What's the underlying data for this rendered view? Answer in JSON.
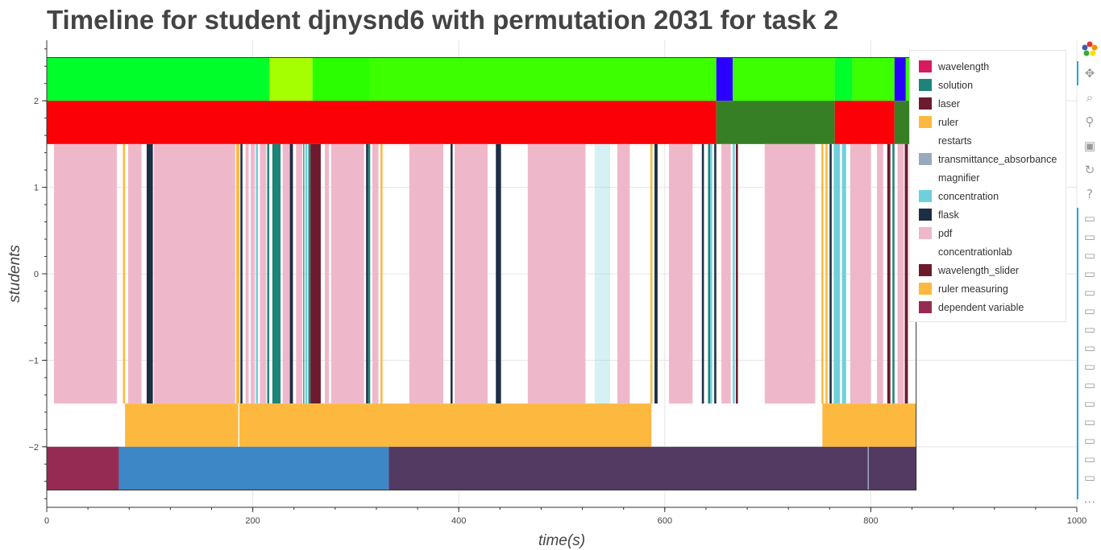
{
  "chart_data": {
    "type": "timeline",
    "title": "Timeline for student djnysnd6 with permutation 2031 for task 2",
    "xlabel": "time(s)",
    "ylabel": "students",
    "xlim": [
      0,
      1000
    ],
    "ylim": [
      -2.7,
      2.7
    ],
    "x_ticks": [
      0,
      200,
      400,
      600,
      800,
      1000
    ],
    "x_tick_labels": [
      "0",
      "200",
      "400",
      "600",
      "800",
      "1000"
    ],
    "y_ticks": [
      2,
      1,
      0,
      -1,
      -2
    ],
    "y_tick_labels": [
      "2",
      "1",
      "0",
      "−1",
      "−2"
    ],
    "grid": true,
    "legend_position": "top-right",
    "legend": [
      {
        "label": "wavelength",
        "color": "#d81b60"
      },
      {
        "label": "solution",
        "color": "#1e8378"
      },
      {
        "label": "laser",
        "color": "#6d1a2e"
      },
      {
        "label": "ruler",
        "color": "#fdb93f"
      },
      {
        "label": "restarts",
        "color": "#ffffff"
      },
      {
        "label": "transmittance_absorbance",
        "color": "#9aaabd"
      },
      {
        "label": "magnifier",
        "color": "#ffffff"
      },
      {
        "label": "concentration",
        "color": "#6fd0dc"
      },
      {
        "label": "flask",
        "color": "#1c2e44"
      },
      {
        "label": "pdf",
        "color": "#efb8ca"
      },
      {
        "label": "concentrationlab",
        "color": "#ffffff"
      },
      {
        "label": "wavelength_slider",
        "color": "#6d1a2e"
      },
      {
        "label": "ruler measuring",
        "color": "#fdb93f"
      },
      {
        "label": "dependent variable",
        "color": "#952b52"
      }
    ],
    "rows": [
      {
        "y0": 2.0,
        "y1": 2.5,
        "segments": [
          {
            "x0": 0,
            "x1": 216,
            "color": "#00ff2a"
          },
          {
            "x0": 216,
            "x1": 258,
            "color": "#a6ff00"
          },
          {
            "x0": 258,
            "x1": 313,
            "color": "#2aff00"
          },
          {
            "x0": 313,
            "x1": 650,
            "color": "#3cff00"
          },
          {
            "x0": 650,
            "x1": 666,
            "color": "#2a00ff"
          },
          {
            "x0": 666,
            "x1": 765,
            "color": "#3cff00"
          },
          {
            "x0": 765,
            "x1": 782,
            "color": "#00ff2a"
          },
          {
            "x0": 782,
            "x1": 823,
            "color": "#3cff00"
          },
          {
            "x0": 823,
            "x1": 834,
            "color": "#2a00ff"
          },
          {
            "x0": 834,
            "x1": 844,
            "color": "#3cff00"
          }
        ]
      },
      {
        "y0": 1.5,
        "y1": 2.0,
        "segments": [
          {
            "x0": 0,
            "x1": 650,
            "color": "#fb0006"
          },
          {
            "x0": 650,
            "x1": 765,
            "color": "#377f25"
          },
          {
            "x0": 765,
            "x1": 823,
            "color": "#fb0006"
          },
          {
            "x0": 823,
            "x1": 838,
            "color": "#377f25"
          }
        ]
      },
      {
        "y0": -1.5,
        "y1": 1.5,
        "segments": [
          {
            "x0": 7,
            "x1": 68,
            "color": "#efb8ca"
          },
          {
            "x0": 74,
            "x1": 76,
            "color": "#fdb93f"
          },
          {
            "x0": 79,
            "x1": 92,
            "color": "#efb8ca"
          },
          {
            "x0": 97,
            "x1": 103,
            "color": "#1c2e44"
          },
          {
            "x0": 104,
            "x1": 183,
            "color": "#efb8ca"
          },
          {
            "x0": 184,
            "x1": 187,
            "color": "#fdb93f"
          },
          {
            "x0": 188,
            "x1": 190,
            "color": "#1c2e44"
          },
          {
            "x0": 193,
            "x1": 196,
            "color": "#efb8ca"
          },
          {
            "x0": 198,
            "x1": 202,
            "color": "#efb8ca"
          },
          {
            "x0": 203,
            "x1": 205,
            "color": "#6fd0dc"
          },
          {
            "x0": 207,
            "x1": 213,
            "color": "#efb8ca"
          },
          {
            "x0": 214,
            "x1": 216,
            "color": "#1e8378"
          },
          {
            "x0": 219,
            "x1": 227,
            "color": "#1e8378"
          },
          {
            "x0": 229,
            "x1": 236,
            "color": "#efb8ca"
          },
          {
            "x0": 236,
            "x1": 239,
            "color": "#1c2e44"
          },
          {
            "x0": 242,
            "x1": 248,
            "color": "#efb8ca"
          },
          {
            "x0": 249,
            "x1": 250,
            "color": "#1e8378"
          },
          {
            "x0": 251,
            "x1": 253,
            "color": "#6fd0dc"
          },
          {
            "x0": 254,
            "x1": 256,
            "color": "#1e8378"
          },
          {
            "x0": 256,
            "x1": 266,
            "color": "#6d1a2e"
          },
          {
            "x0": 270,
            "x1": 274,
            "color": "#efb8ca"
          },
          {
            "x0": 276,
            "x1": 308,
            "color": "#efb8ca"
          },
          {
            "x0": 310,
            "x1": 312,
            "color": "#1c2e44"
          },
          {
            "x0": 312,
            "x1": 314,
            "color": "#1e8378"
          },
          {
            "x0": 316,
            "x1": 322,
            "color": "#efb8ca"
          },
          {
            "x0": 324,
            "x1": 326,
            "color": "#fdb93f"
          },
          {
            "x0": 352,
            "x1": 385,
            "color": "#efb8ca"
          },
          {
            "x0": 392,
            "x1": 394,
            "color": "#1c2e44"
          },
          {
            "x0": 396,
            "x1": 428,
            "color": "#efb8ca"
          },
          {
            "x0": 436,
            "x1": 441,
            "color": "#1c2e44"
          },
          {
            "x0": 467,
            "x1": 523,
            "color": "#efb8ca"
          },
          {
            "x0": 532,
            "x1": 547,
            "color": "#6fd0dc",
            "opacity": 0.3
          },
          {
            "x0": 554,
            "x1": 566,
            "color": "#efb8ca"
          },
          {
            "x0": 586,
            "x1": 588,
            "color": "#fdb93f"
          },
          {
            "x0": 590,
            "x1": 593,
            "color": "#1c2e44"
          },
          {
            "x0": 604,
            "x1": 627,
            "color": "#efb8ca"
          },
          {
            "x0": 636,
            "x1": 638,
            "color": "#1c2e44"
          },
          {
            "x0": 642,
            "x1": 644,
            "color": "#1e8378"
          },
          {
            "x0": 644,
            "x1": 646,
            "color": "#6fd0dc"
          },
          {
            "x0": 648,
            "x1": 650,
            "color": "#1c2e44"
          },
          {
            "x0": 655,
            "x1": 664,
            "color": "#efb8ca"
          },
          {
            "x0": 666,
            "x1": 668,
            "color": "#6fd0dc"
          },
          {
            "x0": 669,
            "x1": 671,
            "color": "#6d1a2e"
          },
          {
            "x0": 697,
            "x1": 746,
            "color": "#efb8ca"
          },
          {
            "x0": 752,
            "x1": 754,
            "color": "#fdb93f"
          },
          {
            "x0": 756,
            "x1": 758,
            "color": "#fdb93f"
          },
          {
            "x0": 760,
            "x1": 762,
            "color": "#1c2e44"
          },
          {
            "x0": 764,
            "x1": 770,
            "color": "#6fd0dc"
          },
          {
            "x0": 772,
            "x1": 776,
            "color": "#6fd0dc"
          },
          {
            "x0": 780,
            "x1": 800,
            "color": "#efb8ca"
          },
          {
            "x0": 806,
            "x1": 812,
            "color": "#efb8ca"
          },
          {
            "x0": 816,
            "x1": 819,
            "color": "#6d1a2e"
          },
          {
            "x0": 821,
            "x1": 823,
            "color": "#1e8378"
          },
          {
            "x0": 826,
            "x1": 832,
            "color": "#efb8ca"
          },
          {
            "x0": 833,
            "x1": 836,
            "color": "#6d1a2e"
          }
        ]
      },
      {
        "y0": -2.0,
        "y1": -1.5,
        "segments": [
          {
            "x0": 76,
            "x1": 186,
            "color": "#fdb93f"
          },
          {
            "x0": 186,
            "x1": 187,
            "color": "#ffffff"
          },
          {
            "x0": 187,
            "x1": 587,
            "color": "#fdb93f"
          },
          {
            "x0": 753,
            "x1": 844,
            "color": "#fdb93f"
          }
        ]
      },
      {
        "y0": -2.5,
        "y1": -2.0,
        "segments": [
          {
            "x0": 0,
            "x1": 70,
            "color": "#952b52"
          },
          {
            "x0": 70,
            "x1": 332,
            "color": "#3e87c7"
          },
          {
            "x0": 332,
            "x1": 797,
            "color": "#523a63"
          },
          {
            "x0": 797,
            "x1": 798,
            "color": "#9aaabd"
          },
          {
            "x0": 798,
            "x1": 844,
            "color": "#523a63"
          }
        ]
      }
    ],
    "outline": {
      "x0": 0,
      "x1": 844,
      "y0": -2.5,
      "y1": 2.5
    }
  }
}
